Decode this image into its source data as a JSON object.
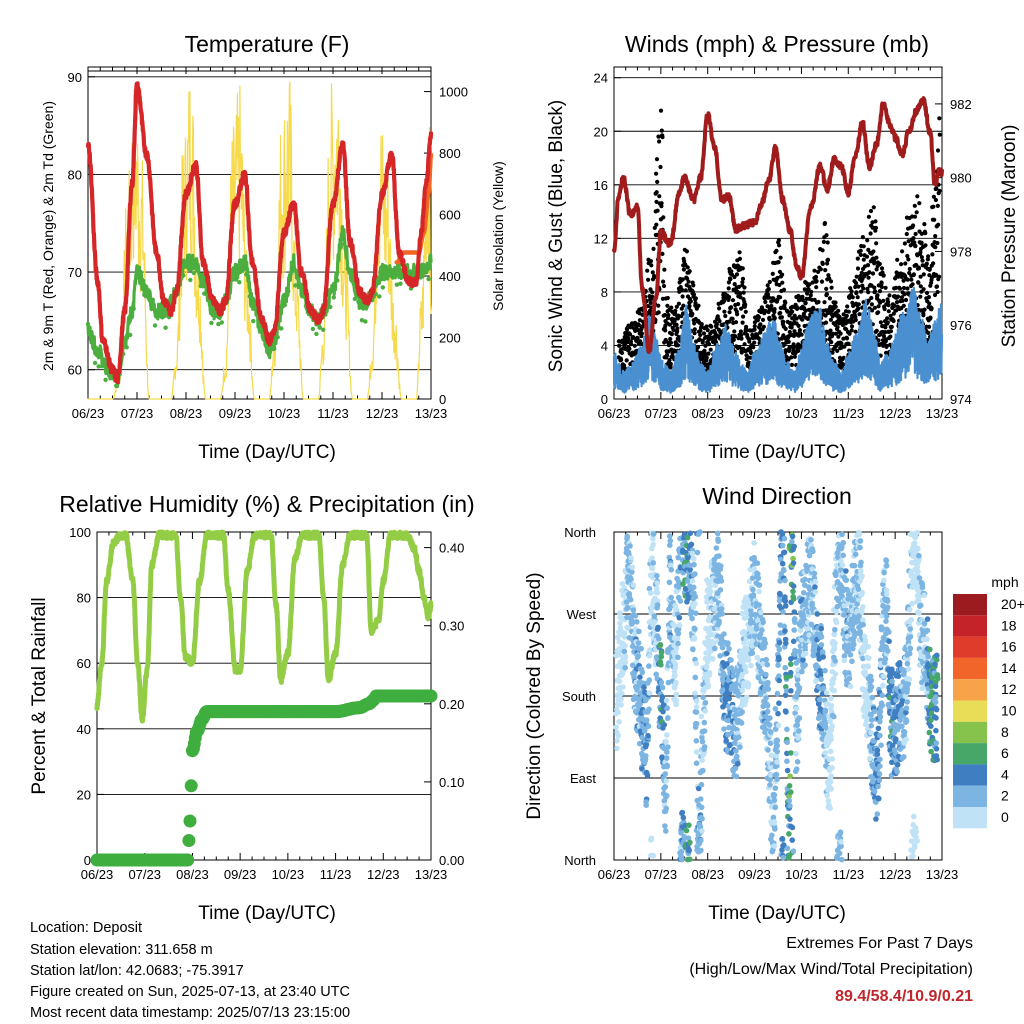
{
  "colors": {
    "temp_2m": "#d62728",
    "temp_9m": "#f26522",
    "dewpoint": "#4cae3f",
    "solar": "#f7d94c",
    "wind": "#4a90d0",
    "gust": "#000000",
    "pressure": "#a01c1c",
    "rh": "#93cc45",
    "precip": "#3fae3f",
    "extremes_values": "#c0272d"
  },
  "x_ticks": [
    "06/23",
    "07/23",
    "08/23",
    "09/23",
    "10/23",
    "11/23",
    "12/23",
    "13/23"
  ],
  "chart_data": [
    {
      "id": "temperature",
      "type": "line",
      "title": "Temperature (F)",
      "xlabel": "Time (Day/UTC)",
      "ylabel_left": "2m & 9m T (Red, Orange) & 2m Td (Green)",
      "ylabel_right": "Solar Insolation (Yellow)",
      "ylim_left": [
        57,
        91
      ],
      "ylim_right": [
        0,
        1080
      ],
      "yticks_left": [
        60,
        70,
        80,
        90
      ],
      "yticks_right": [
        0,
        200,
        400,
        600,
        800,
        1000
      ],
      "xlim": [
        6,
        13
      ],
      "grid": true,
      "series": [
        {
          "name": "2m T",
          "axis": "left",
          "x": [
            6.0,
            6.2,
            6.3,
            6.5,
            6.6,
            6.75,
            6.9,
            7.0,
            7.2,
            7.4,
            7.55,
            7.7,
            7.8,
            8.0,
            8.2,
            8.35,
            8.55,
            8.7,
            8.8,
            9.0,
            9.2,
            9.35,
            9.55,
            9.7,
            9.8,
            10.0,
            10.2,
            10.35,
            10.55,
            10.7,
            10.8,
            11.0,
            11.2,
            11.35,
            11.55,
            11.7,
            11.8,
            12.0,
            12.2,
            12.35,
            12.55,
            12.7,
            12.8,
            12.9,
            13.0
          ],
          "y": [
            83,
            69,
            63,
            60,
            59,
            66,
            79,
            89,
            82,
            72,
            67,
            66,
            68,
            78,
            81,
            71,
            67,
            66,
            67,
            77,
            80,
            71,
            65,
            63,
            64,
            74,
            77,
            70,
            66,
            65,
            66,
            77,
            83,
            73,
            68,
            67,
            68,
            78,
            82,
            72,
            69,
            69,
            74,
            79,
            84
          ]
        },
        {
          "name": "9m T",
          "axis": "left",
          "x": [
            12.3,
            12.45,
            12.6,
            12.75,
            12.85,
            12.95,
            13.0
          ],
          "y": [
            71,
            72,
            72,
            72,
            74,
            78,
            82
          ]
        },
        {
          "name": "2m Td",
          "axis": "left",
          "x": [
            6.0,
            6.2,
            6.4,
            6.6,
            6.75,
            6.9,
            7.0,
            7.2,
            7.4,
            7.6,
            7.8,
            8.0,
            8.2,
            8.35,
            8.55,
            8.7,
            8.8,
            9.0,
            9.2,
            9.35,
            9.55,
            9.7,
            9.8,
            10.0,
            10.2,
            10.35,
            10.55,
            10.7,
            10.8,
            11.0,
            11.2,
            11.35,
            11.55,
            11.7,
            11.8,
            12.0,
            12.2,
            12.4,
            12.6,
            12.8,
            13.0
          ],
          "y": [
            64,
            62,
            60,
            59,
            63,
            66,
            70,
            68,
            66,
            66,
            68,
            71,
            71,
            69,
            66,
            66,
            67,
            70,
            71,
            67,
            64,
            62,
            63,
            67,
            71,
            68,
            66,
            65,
            66,
            68,
            74,
            70,
            67,
            67,
            68,
            70,
            70,
            70,
            70,
            70,
            71
          ]
        },
        {
          "name": "Solar",
          "axis": "right",
          "x": [
            6.0,
            6.2,
            6.35,
            6.5,
            6.65,
            6.8,
            6.95,
            7.1,
            7.25,
            7.4,
            7.55,
            7.7,
            7.8,
            7.95,
            8.1,
            8.25,
            8.4,
            8.55,
            8.7,
            8.8,
            8.95,
            9.1,
            9.25,
            9.4,
            9.55,
            9.7,
            9.8,
            9.95,
            10.1,
            10.25,
            10.4,
            10.55,
            10.7,
            10.8,
            10.95,
            11.1,
            11.25,
            11.4,
            11.55,
            11.7,
            11.8,
            11.95,
            12.1,
            12.25,
            12.4,
            12.55,
            12.7,
            12.8,
            12.95,
            13.0
          ],
          "y": [
            0,
            0,
            0,
            0,
            100,
            600,
            920,
            700,
            0,
            0,
            0,
            0,
            150,
            750,
            980,
            450,
            0,
            0,
            0,
            120,
            780,
            900,
            400,
            0,
            0,
            0,
            200,
            820,
            950,
            400,
            0,
            0,
            0,
            220,
            900,
            1000,
            450,
            0,
            0,
            0,
            180,
            850,
            700,
            300,
            0,
            0,
            0,
            300,
            950,
            450
          ]
        }
      ]
    },
    {
      "id": "winds",
      "type": "scatter",
      "title": "Winds (mph) & Pressure (mb)",
      "xlabel": "Time (Day/UTC)",
      "ylabel_left": "Sonic Wind & Gust (Blue, Black)",
      "ylabel_right": "Station Pressure (Maroon)",
      "ylim_left": [
        0,
        24.8
      ],
      "ylim_right": [
        974,
        983
      ],
      "yticks_left": [
        0,
        4,
        8,
        12,
        16,
        20,
        24
      ],
      "yticks_right": [
        974,
        976,
        978,
        980,
        982
      ],
      "xlim": [
        6,
        13
      ],
      "grid": true,
      "series": [
        {
          "name": "Sonic Wind",
          "axis": "left",
          "x": [
            6.0,
            6.2,
            6.4,
            6.6,
            6.75,
            6.9,
            7.05,
            7.2,
            7.35,
            7.55,
            7.7,
            7.85,
            8.0,
            8.2,
            8.4,
            8.55,
            8.7,
            8.85,
            9.0,
            9.2,
            9.4,
            9.55,
            9.7,
            9.85,
            10.0,
            10.2,
            10.4,
            10.55,
            10.7,
            10.85,
            11.0,
            11.2,
            11.4,
            11.55,
            11.7,
            11.85,
            12.0,
            12.2,
            12.4,
            12.55,
            12.7,
            12.85,
            13.0
          ],
          "y": [
            2.5,
            1.5,
            2.0,
            3.0,
            4.5,
            3.5,
            2.0,
            1.5,
            2.5,
            5.0,
            3.0,
            2.0,
            1.5,
            3.0,
            4.0,
            3.0,
            2.0,
            1.5,
            2.5,
            3.5,
            4.5,
            3.0,
            2.0,
            1.5,
            3.0,
            4.5,
            5.0,
            3.0,
            2.0,
            1.5,
            2.5,
            4.0,
            5.5,
            3.5,
            2.0,
            2.5,
            3.5,
            5.0,
            6.0,
            4.5,
            3.0,
            4.5,
            5.5
          ]
        },
        {
          "name": "Gust",
          "axis": "left",
          "x": [
            6.1,
            6.5,
            6.8,
            6.95,
            7.0,
            7.1,
            7.3,
            7.5,
            7.7,
            7.9,
            8.1,
            8.3,
            8.5,
            8.7,
            8.9,
            9.1,
            9.3,
            9.5,
            9.7,
            9.9,
            10.1,
            10.3,
            10.5,
            10.7,
            10.9,
            11.1,
            11.3,
            11.5,
            11.7,
            11.9,
            12.1,
            12.3,
            12.5,
            12.7,
            12.85,
            12.95
          ],
          "y": [
            4,
            6,
            10,
            18,
            22.5,
            7,
            6,
            11,
            8,
            5,
            5,
            7,
            9,
            10,
            5,
            6,
            8,
            11,
            6,
            7,
            8,
            9,
            12,
            7,
            6,
            8,
            11,
            14,
            9,
            7,
            10,
            13,
            14,
            11,
            15,
            20.5
          ]
        },
        {
          "name": "Pressure",
          "axis": "right",
          "x": [
            6.0,
            6.1,
            6.2,
            6.35,
            6.5,
            6.6,
            6.75,
            6.9,
            7.0,
            7.2,
            7.4,
            7.5,
            7.7,
            7.85,
            8.0,
            8.15,
            8.3,
            8.45,
            8.6,
            8.8,
            9.0,
            9.15,
            9.3,
            9.45,
            9.6,
            9.75,
            9.9,
            10.0,
            10.2,
            10.4,
            10.55,
            10.7,
            10.85,
            11.0,
            11.15,
            11.3,
            11.45,
            11.6,
            11.75,
            11.9,
            12.0,
            12.15,
            12.3,
            12.45,
            12.6,
            12.75,
            12.85,
            12.95,
            13.0
          ],
          "y": [
            978,
            979.5,
            980,
            979,
            979.2,
            977,
            975.3,
            976.8,
            978.5,
            978.2,
            979.6,
            980,
            979.4,
            980,
            981.7,
            980.8,
            979.4,
            979.5,
            978.6,
            978.7,
            978.8,
            979.3,
            979.9,
            980.8,
            979.4,
            978.6,
            977.6,
            977.3,
            979.2,
            980.3,
            979.7,
            980.5,
            980.3,
            979.6,
            980.6,
            981.5,
            980.3,
            980.9,
            982,
            981.4,
            981.1,
            980.6,
            981.3,
            981.8,
            982.1,
            981.2,
            979.8,
            980.2,
            980.1
          ]
        }
      ]
    },
    {
      "id": "humidity",
      "type": "line",
      "title": "Relative Humidity (%) & Precipitation (in)",
      "xlabel": "Time (Day/UTC)",
      "ylabel_left": "Percent & Total Rainfall",
      "ylim_left": [
        0,
        100
      ],
      "ylim_right": [
        0,
        0.42
      ],
      "yticks_left": [
        0,
        20,
        40,
        60,
        80,
        100
      ],
      "yticks_right": [
        "0.00",
        "0.10",
        "0.20",
        "0.30",
        "0.40"
      ],
      "xlim": [
        6,
        13
      ],
      "grid": true,
      "series": [
        {
          "name": "RH",
          "axis": "left",
          "x": [
            6.0,
            6.1,
            6.2,
            6.35,
            6.5,
            6.6,
            6.75,
            6.85,
            6.95,
            7.05,
            7.15,
            7.3,
            7.5,
            7.65,
            7.75,
            7.85,
            8.0,
            8.15,
            8.3,
            8.5,
            8.65,
            8.75,
            8.9,
            9.0,
            9.15,
            9.3,
            9.5,
            9.65,
            9.75,
            9.85,
            10.0,
            10.15,
            10.3,
            10.5,
            10.65,
            10.75,
            10.85,
            11.0,
            11.15,
            11.3,
            11.5,
            11.65,
            11.75,
            11.9,
            12.0,
            12.15,
            12.3,
            12.5,
            12.65,
            12.75,
            12.85,
            12.95,
            13.0
          ],
          "y": [
            47,
            60,
            85,
            97,
            99,
            99,
            85,
            60,
            43,
            58,
            90,
            99,
            99,
            99,
            80,
            62,
            60,
            85,
            99,
            99,
            99,
            82,
            58,
            58,
            88,
            99,
            99,
            99,
            78,
            55,
            63,
            92,
            99,
            99,
            99,
            80,
            55,
            63,
            90,
            99,
            99,
            99,
            70,
            73,
            85,
            99,
            99,
            99,
            95,
            88,
            80,
            74,
            78
          ]
        },
        {
          "name": "Total Precipitation",
          "axis": "right",
          "x": [
            6.0,
            7.0,
            7.9,
            7.95,
            8.0,
            8.1,
            8.2,
            8.3,
            9.0,
            10.0,
            10.5,
            11.0,
            11.5,
            11.7,
            11.8,
            11.85,
            12.0,
            13.0
          ],
          "y": [
            0,
            0,
            0,
            0.05,
            0.14,
            0.165,
            0.18,
            0.19,
            0.19,
            0.19,
            0.19,
            0.19,
            0.195,
            0.2,
            0.205,
            0.21,
            0.21,
            0.21
          ]
        }
      ]
    },
    {
      "id": "direction",
      "type": "scatter",
      "title": "Wind Direction",
      "xlabel": "Time (Day/UTC)",
      "ylabel_left": "Direction (Colored By Speed)",
      "yticks_left": [
        "North",
        "East",
        "South",
        "West",
        "North"
      ],
      "ylim_left": [
        0,
        360
      ],
      "xlim": [
        6,
        13
      ],
      "grid": true,
      "legend": {
        "title": "mph",
        "labels": [
          "20+",
          "18",
          "16",
          "14",
          "12",
          "10",
          "8",
          "6",
          "4",
          "2",
          "0"
        ],
        "colors": [
          "#9b1b1e",
          "#c4232a",
          "#e03c2c",
          "#f2652a",
          "#f7a34a",
          "#e9dc56",
          "#86c34c",
          "#47a76a",
          "#3f7fc1",
          "#7cb4e2",
          "#bfe2f6"
        ]
      },
      "series": [
        {
          "name": "Direction",
          "x": [
            6.05,
            6.2,
            6.3,
            6.5,
            6.7,
            6.8,
            6.9,
            7.0,
            7.1,
            7.2,
            7.3,
            7.45,
            7.55,
            7.6,
            7.7,
            7.8,
            8.0,
            8.2,
            8.4,
            8.6,
            8.8,
            9.0,
            9.2,
            9.4,
            9.6,
            9.75,
            9.8,
            9.9,
            10.0,
            10.2,
            10.4,
            10.6,
            10.8,
            11.0,
            11.2,
            11.4,
            11.6,
            11.8,
            11.9,
            12.0,
            12.2,
            12.4,
            12.6,
            12.8,
            12.9
          ],
          "y": [
            180,
            250,
            310,
            200,
            120,
            330,
            260,
            180,
            90,
            300,
            220,
            355,
            340,
            340,
            280,
            30,
            250,
            300,
            180,
            150,
            230,
            290,
            200,
            60,
            330,
            20,
            355,
            150,
            260,
            300,
            200,
            110,
            340,
            240,
            310,
            180,
            100,
            280,
            150,
            150,
            170,
            350,
            240,
            160,
            170
          ],
          "speed": [
            0,
            1,
            2,
            3,
            4,
            1,
            2,
            6,
            2,
            3,
            1,
            4,
            6,
            5,
            2,
            3,
            1,
            2,
            4,
            3,
            1,
            2,
            3,
            2,
            4,
            6,
            7,
            2,
            3,
            2,
            4,
            1,
            2,
            3,
            2,
            1,
            4,
            2,
            5,
            4,
            3,
            1,
            2,
            6,
            5
          ]
        }
      ]
    }
  ],
  "info": {
    "location": "Location: Deposit",
    "elevation": "Station elevation: 311.658 m",
    "latlon": "Station lat/lon: 42.0683; -75.3917",
    "created": "Figure created on Sun, 2025-07-13, at 23:40 UTC",
    "recent": "Most recent data timestamp: 2025/07/13 23:15:00"
  },
  "extremes": {
    "title": "Extremes For Past 7 Days",
    "subtitle": "(High/Low/Max Wind/Total Precipitation)",
    "values": "89.4/58.4/10.9/0.21"
  }
}
